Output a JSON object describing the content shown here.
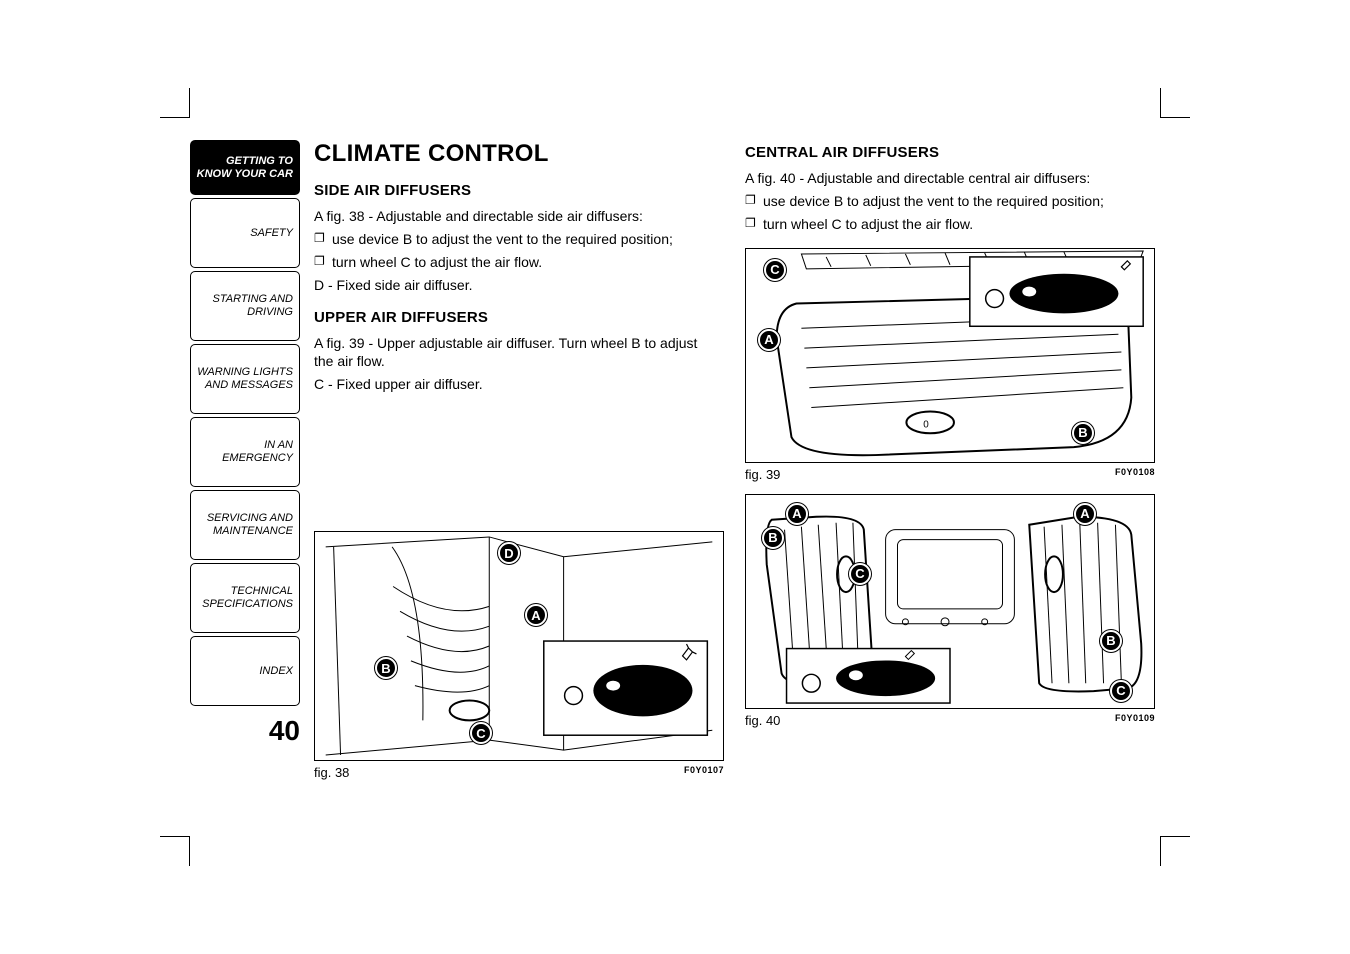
{
  "page_number": "40",
  "sidebar": {
    "tabs": [
      {
        "label": "GETTING TO\nKNOW YOUR CAR",
        "active": true
      },
      {
        "label": "SAFETY",
        "active": false
      },
      {
        "label": "STARTING AND\nDRIVING",
        "active": false
      },
      {
        "label": "WARNING LIGHTS\nAND MESSAGES",
        "active": false
      },
      {
        "label": "IN AN EMERGENCY",
        "active": false
      },
      {
        "label": "SERVICING AND\nMAINTENANCE",
        "active": false
      },
      {
        "label": "TECHNICAL\nSPECIFICATIONS",
        "active": false
      },
      {
        "label": "INDEX",
        "active": false
      }
    ]
  },
  "h1": "CLIMATE CONTROL",
  "left": {
    "section1_title": "SIDE AIR DIFFUSERS",
    "section1_intro": "A fig. 38 - Adjustable and directable side air diffusers:",
    "section1_bullets": [
      "use device B to adjust the vent to the required position;",
      "turn wheel C to adjust the air flow."
    ],
    "section1_tail": "D - Fixed side air diffuser.",
    "section2_title": "UPPER AIR DIFFUSERS",
    "section2_p1": "A fig. 39 - Upper adjustable air diffuser. Turn wheel B to adjust the air flow.",
    "section2_p2": "C - Fixed upper air diffuser.",
    "fig38": {
      "caption": "fig. 38",
      "code": "F0Y0107",
      "callouts": {
        "A": "A",
        "B": "B",
        "C": "C",
        "D": "D"
      }
    }
  },
  "right": {
    "section_title": "CENTRAL AIR DIFFUSERS",
    "section_intro": "A fig. 40 - Adjustable and directable central air diffusers:",
    "section_bullets": [
      "use device B to adjust the vent to the required position;",
      "turn wheel C to adjust the air flow."
    ],
    "fig39": {
      "caption": "fig. 39",
      "code": "F0Y0108",
      "callouts": {
        "A": "A",
        "B": "B",
        "C": "C"
      }
    },
    "fig40": {
      "caption": "fig. 40",
      "code": "F0Y0109",
      "callouts": {
        "A1": "A",
        "A2": "A",
        "B1": "B",
        "B2": "B",
        "C1": "C",
        "C2": "C"
      }
    }
  },
  "colors": {
    "text": "#000000",
    "bg": "#ffffff"
  }
}
